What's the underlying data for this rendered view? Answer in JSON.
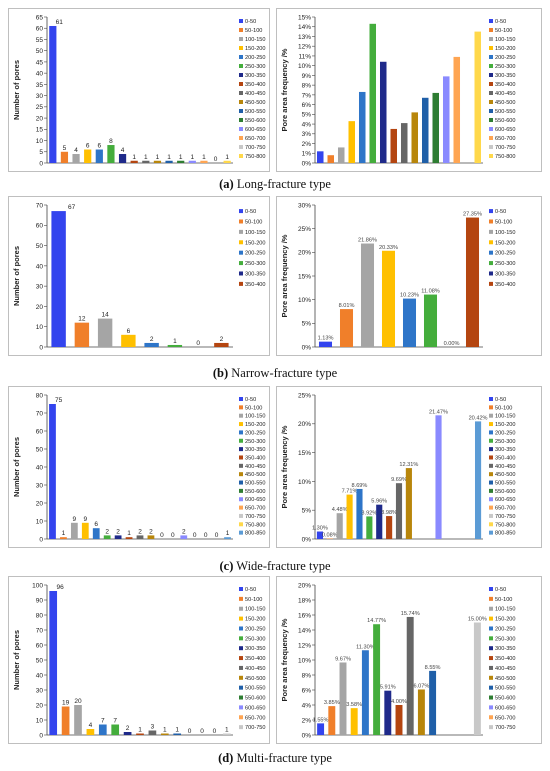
{
  "palette": {
    "0-50": "#3344ee",
    "50-100": "#f07f2a",
    "100-150": "#a5a5a5",
    "150-200": "#ffc000",
    "200-250": "#2e75c8",
    "250-300": "#44ad3c",
    "300-350": "#1f2a8a",
    "350-400": "#b44510",
    "400-450": "#666666",
    "450-500": "#b8860b",
    "500-550": "#1f5fa8",
    "550-600": "#2e7d32",
    "600-650": "#8a8aff",
    "650-700": "#ffa552",
    "700-750": "#c8c8c8",
    "750-800": "#ffd84a",
    "800-850": "#5b9bd5"
  },
  "groups": [
    {
      "caption_tag": "(a)",
      "caption_text": "Long-fracture type",
      "chart_data": [
        {
          "type": "bar",
          "ylabel": "Number of pores",
          "ylim": [
            0,
            65
          ],
          "yticks": [
            "0",
            "5",
            "10",
            "15",
            "20",
            "25",
            "30",
            "35",
            "40",
            "45",
            "50",
            "55",
            "60",
            "65"
          ],
          "categories": [
            "0-50",
            "50-100",
            "100-150",
            "150-200",
            "200-250",
            "250-300",
            "300-350",
            "350-400",
            "400-450",
            "450-500",
            "500-550",
            "550-600",
            "600-650",
            "650-700",
            "700-750",
            "750-800"
          ],
          "values": [
            61,
            5,
            4,
            6,
            6,
            8,
            4,
            1,
            1,
            1,
            1,
            1,
            1,
            1,
            0,
            1
          ],
          "labels": [
            "61",
            "5",
            "4",
            "6",
            "6",
            "8",
            "4",
            "1",
            "1",
            "1",
            "1",
            "1",
            "1",
            "1",
            "0",
            "1"
          ]
        },
        {
          "type": "bar",
          "ylabel": "Pore area frequency /%",
          "ylim": [
            0,
            15
          ],
          "yticks": [
            "0%",
            "1%",
            "2%",
            "3%",
            "4%",
            "5%",
            "6%",
            "7%",
            "8%",
            "9%",
            "10%",
            "11%",
            "12%",
            "13%",
            "14%",
            "15%"
          ],
          "categories": [
            "0-50",
            "50-100",
            "100-150",
            "150-200",
            "200-250",
            "250-300",
            "300-350",
            "350-400",
            "400-450",
            "450-500",
            "500-550",
            "550-600",
            "600-650",
            "650-700",
            "700-750",
            "750-800"
          ],
          "values": [
            1.2,
            0.8,
            1.6,
            4.3,
            7.3,
            14.3,
            10.4,
            3.5,
            4.1,
            5.2,
            6.7,
            7.2,
            8.9,
            10.9,
            0,
            13.5
          ],
          "labels": []
        }
      ]
    },
    {
      "caption_tag": "(b)",
      "caption_text": "Narrow-fracture type",
      "chart_data": [
        {
          "type": "bar",
          "ylabel": "Number of pores",
          "ylim": [
            0,
            70
          ],
          "yticks": [
            "0",
            "10",
            "20",
            "30",
            "40",
            "50",
            "60",
            "70"
          ],
          "categories": [
            "0-50",
            "50-100",
            "100-150",
            "150-200",
            "200-250",
            "250-300",
            "300-350",
            "350-400"
          ],
          "values": [
            67,
            12,
            14,
            6,
            2,
            1,
            0,
            2
          ],
          "labels": [
            "67",
            "12",
            "14",
            "6",
            "2",
            "1",
            "0",
            "2"
          ]
        },
        {
          "type": "bar",
          "ylabel": "Pore area frequency /%",
          "ylim": [
            0,
            30
          ],
          "yticks": [
            "0%",
            "5%",
            "10%",
            "15%",
            "20%",
            "25%",
            "30%"
          ],
          "categories": [
            "0-50",
            "50-100",
            "100-150",
            "150-200",
            "200-250",
            "250-300",
            "300-350",
            "350-400"
          ],
          "values": [
            1.13,
            8.01,
            21.86,
            20.33,
            10.23,
            11.08,
            0,
            27.35
          ],
          "labels": [
            "1.13%",
            "8.01%",
            "21.86%",
            "20.33%",
            "10.23%",
            "11.08%",
            "0.00%",
            "27.35%"
          ]
        }
      ]
    },
    {
      "caption_tag": "(c)",
      "caption_text": "Wide-fracture type",
      "chart_data": [
        {
          "type": "bar",
          "ylabel": "Number of pores",
          "ylim": [
            0,
            80
          ],
          "yticks": [
            "0",
            "10",
            "20",
            "30",
            "40",
            "50",
            "60",
            "70",
            "80"
          ],
          "categories": [
            "0-50",
            "50-100",
            "100-150",
            "150-200",
            "200-250",
            "250-300",
            "300-350",
            "350-400",
            "400-450",
            "450-500",
            "500-550",
            "550-600",
            "600-650",
            "650-700",
            "700-750",
            "750-800",
            "800-850"
          ],
          "values": [
            75,
            1,
            9,
            9,
            6,
            2,
            2,
            1,
            2,
            2,
            0,
            0,
            2,
            0,
            0,
            0,
            1
          ],
          "labels": [
            "75",
            "1",
            "9",
            "9",
            "6",
            "2",
            "2",
            "1",
            "2",
            "2",
            "0",
            "0",
            "2",
            "0",
            "0",
            "0",
            "1"
          ]
        },
        {
          "type": "bar",
          "ylabel": "Pore area frequency /%",
          "ylim": [
            0,
            25
          ],
          "yticks": [
            "0%",
            "5%",
            "10%",
            "15%",
            "20%",
            "25%"
          ],
          "categories": [
            "0-50",
            "50-100",
            "100-150",
            "150-200",
            "200-250",
            "250-300",
            "300-350",
            "350-400",
            "400-450",
            "450-500",
            "500-550",
            "550-600",
            "600-650",
            "650-700",
            "700-750",
            "750-800",
            "800-850"
          ],
          "values": [
            1.3,
            0.08,
            4.48,
            7.71,
            8.69,
            3.92,
            5.96,
            3.98,
            9.69,
            12.31,
            0,
            0,
            21.47,
            0,
            0,
            0,
            20.42
          ],
          "labels": [
            "1.30%",
            "0.08%",
            "4.48%",
            "7.71%",
            "8.69%",
            "3.92%",
            "5.96%",
            "3.98%",
            "9.69%",
            "12.31%",
            "",
            "",
            "21.47%",
            "",
            "",
            "",
            "20.42%"
          ]
        }
      ]
    },
    {
      "caption_tag": "(d)",
      "caption_text": "Multi-fracture type",
      "chart_data": [
        {
          "type": "bar",
          "ylabel": "Number of pores",
          "ylim": [
            0,
            100
          ],
          "yticks": [
            "0",
            "10",
            "20",
            "30",
            "40",
            "50",
            "60",
            "70",
            "80",
            "90",
            "100"
          ],
          "categories": [
            "0-50",
            "50-100",
            "100-150",
            "150-200",
            "200-250",
            "250-300",
            "300-350",
            "350-400",
            "400-450",
            "450-500",
            "500-550",
            "550-600",
            "600-650",
            "650-700",
            "700-750"
          ],
          "values": [
            96,
            19,
            20,
            4,
            7,
            7,
            2,
            1,
            3,
            1,
            1,
            0,
            0,
            0,
            1
          ],
          "labels": [
            "96",
            "19",
            "20",
            "4",
            "7",
            "7",
            "2",
            "1",
            "3",
            "1",
            "1",
            "0",
            "0",
            "0",
            "1"
          ]
        },
        {
          "type": "bar",
          "ylabel": "Pore area frequency /%",
          "ylim": [
            0,
            20
          ],
          "yticks": [
            "0%",
            "2%",
            "4%",
            "6%",
            "8%",
            "10%",
            "12%",
            "14%",
            "16%",
            "18%",
            "20%"
          ],
          "categories": [
            "0-50",
            "50-100",
            "100-150",
            "150-200",
            "200-250",
            "250-300",
            "300-350",
            "350-400",
            "400-450",
            "450-500",
            "500-550",
            "550-600",
            "600-650",
            "650-700",
            "700-750"
          ],
          "values": [
            1.55,
            3.85,
            9.67,
            3.58,
            11.3,
            14.77,
            5.91,
            4.0,
            15.74,
            6.07,
            8.55,
            0,
            0,
            0,
            15.0
          ],
          "labels": [
            "1.55%",
            "3.85%",
            "9.67%",
            "3.58%",
            "11.30%",
            "14.77%",
            "5.91%",
            "4.00%",
            "15.74%",
            "6.07%",
            "8.55%",
            "",
            "",
            "",
            "15.00%"
          ]
        }
      ]
    }
  ]
}
